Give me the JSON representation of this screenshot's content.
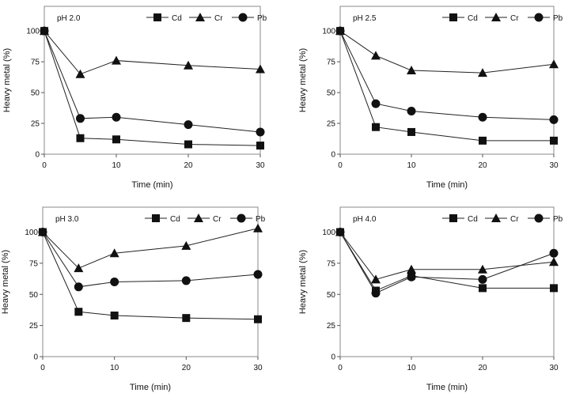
{
  "chart_data": [
    {
      "type": "line",
      "annotation": "pH 2.0",
      "xlabel": "Time (min)",
      "ylabel": "Heavy metal (%)",
      "x": [
        0,
        5,
        10,
        20,
        30
      ],
      "x_ticks": [
        "0",
        "10",
        "20",
        "30"
      ],
      "y_ticks": [
        "0",
        "25",
        "50",
        "75",
        "100"
      ],
      "xlim": [
        0,
        30
      ],
      "ylim": [
        0,
        120
      ],
      "grid": false,
      "legend_position": "top",
      "series": [
        {
          "name": "Cd",
          "marker": "square",
          "values": [
            100,
            13,
            12,
            8,
            7
          ]
        },
        {
          "name": "Cr",
          "marker": "triangle",
          "values": [
            100,
            65,
            76,
            72,
            69
          ]
        },
        {
          "name": "Pb",
          "marker": "circle",
          "values": [
            100,
            29,
            30,
            24,
            18
          ]
        }
      ]
    },
    {
      "type": "line",
      "annotation": "pH 2.5",
      "xlabel": "Time (min)",
      "ylabel": "Heavy metal (%)",
      "x": [
        0,
        5,
        10,
        20,
        30
      ],
      "x_ticks": [
        "0",
        "10",
        "20",
        "30"
      ],
      "y_ticks": [
        "0",
        "25",
        "50",
        "75",
        "100"
      ],
      "xlim": [
        0,
        30
      ],
      "ylim": [
        0,
        120
      ],
      "grid": false,
      "legend_position": "top",
      "series": [
        {
          "name": "Cd",
          "marker": "square",
          "values": [
            100,
            22,
            18,
            11,
            11
          ]
        },
        {
          "name": "Cr",
          "marker": "triangle",
          "values": [
            100,
            80,
            68,
            66,
            73
          ]
        },
        {
          "name": "Pb",
          "marker": "circle",
          "values": [
            100,
            41,
            35,
            30,
            28
          ]
        }
      ]
    },
    {
      "type": "line",
      "annotation": "pH 3.0",
      "xlabel": "Time (min)",
      "ylabel": "Heavy metal (%)",
      "x": [
        0,
        5,
        10,
        20,
        30
      ],
      "x_ticks": [
        "0",
        "10",
        "20",
        "30"
      ],
      "y_ticks": [
        "0",
        "25",
        "50",
        "75",
        "100"
      ],
      "xlim": [
        0,
        30
      ],
      "ylim": [
        0,
        120
      ],
      "grid": false,
      "legend_position": "top",
      "series": [
        {
          "name": "Cd",
          "marker": "square",
          "values": [
            100,
            36,
            33,
            31,
            30
          ]
        },
        {
          "name": "Cr",
          "marker": "triangle",
          "values": [
            100,
            71,
            83,
            89,
            103
          ]
        },
        {
          "name": "Pb",
          "marker": "circle",
          "values": [
            100,
            56,
            60,
            61,
            66
          ]
        }
      ]
    },
    {
      "type": "line",
      "annotation": "pH 4.0",
      "xlabel": "Time (min)",
      "ylabel": "Heavy metal (%)",
      "x": [
        0,
        5,
        10,
        20,
        30
      ],
      "x_ticks": [
        "0",
        "10",
        "20",
        "30"
      ],
      "y_ticks": [
        "0",
        "25",
        "50",
        "75",
        "100"
      ],
      "xlim": [
        0,
        30
      ],
      "ylim": [
        0,
        120
      ],
      "grid": false,
      "legend_position": "top",
      "series": [
        {
          "name": "Cd",
          "marker": "square",
          "values": [
            100,
            53,
            65,
            55,
            55
          ]
        },
        {
          "name": "Cr",
          "marker": "triangle",
          "values": [
            100,
            62,
            70,
            70,
            76
          ]
        },
        {
          "name": "Pb",
          "marker": "circle",
          "values": [
            100,
            51,
            64,
            62,
            83
          ]
        }
      ]
    }
  ]
}
